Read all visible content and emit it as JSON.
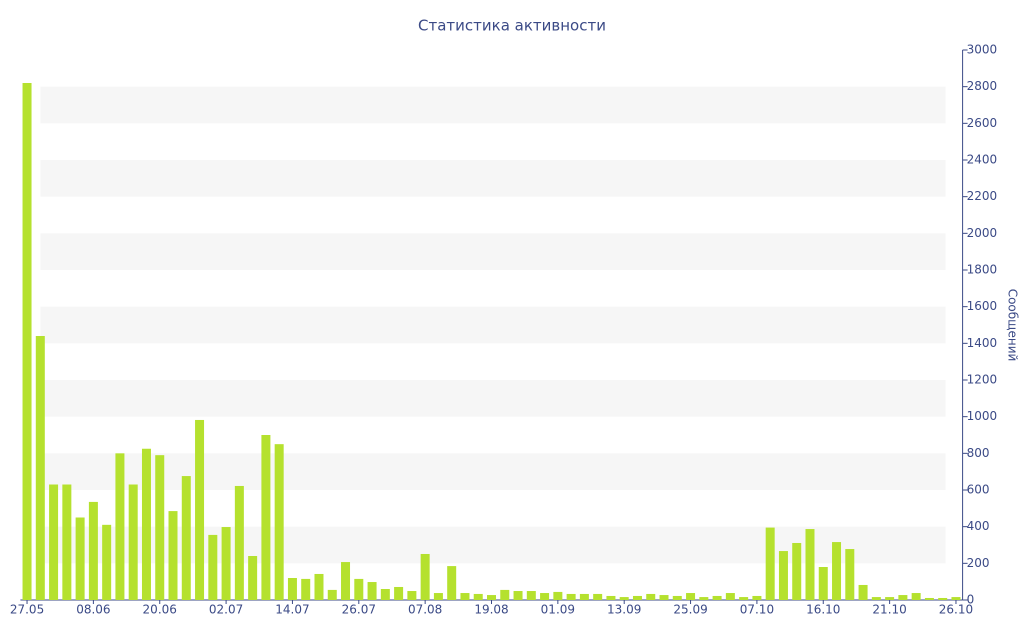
{
  "chart_data": {
    "type": "bar",
    "title": "Статистика активности",
    "y_label": "Сообщений",
    "categories": [
      "27.05",
      null,
      null,
      null,
      null,
      "08.06",
      null,
      null,
      null,
      null,
      "20.06",
      null,
      null,
      null,
      null,
      "02.07",
      null,
      null,
      null,
      null,
      "14.07",
      null,
      null,
      null,
      null,
      "26.07",
      null,
      null,
      null,
      null,
      "07.08",
      null,
      null,
      null,
      null,
      "19.08",
      null,
      null,
      null,
      null,
      "01.09",
      null,
      null,
      null,
      null,
      "13.09",
      null,
      null,
      null,
      null,
      "25.09",
      null,
      null,
      null,
      null,
      "07.10",
      null,
      null,
      null,
      null,
      "16.10",
      null,
      null,
      null,
      null,
      "21.10",
      null,
      null,
      null,
      null,
      "26.10"
    ],
    "values": [
      2820,
      1440,
      630,
      630,
      450,
      535,
      410,
      800,
      630,
      825,
      790,
      485,
      676,
      982,
      355,
      398,
      622,
      240,
      900,
      850,
      120,
      115,
      142,
      55,
      207,
      115,
      98,
      60,
      71,
      49,
      251,
      38,
      185,
      38,
      33,
      27,
      55,
      49,
      49,
      38,
      44,
      33,
      33,
      33,
      22,
      16,
      22,
      33,
      27,
      22,
      38,
      16,
      22,
      38,
      16,
      22,
      395,
      267,
      311,
      387,
      180,
      316,
      278,
      82,
      16,
      16,
      27,
      38,
      11,
      11,
      16
    ],
    "color": "#b5e12e",
    "ylim": [
      0,
      3000
    ],
    "yticks": [
      0,
      200,
      400,
      600,
      800,
      1000,
      1200,
      1400,
      1600,
      1800,
      2000,
      2200,
      2400,
      2600,
      2800,
      3000
    ],
    "y_axis_side": "right",
    "alternate_bands": true
  }
}
